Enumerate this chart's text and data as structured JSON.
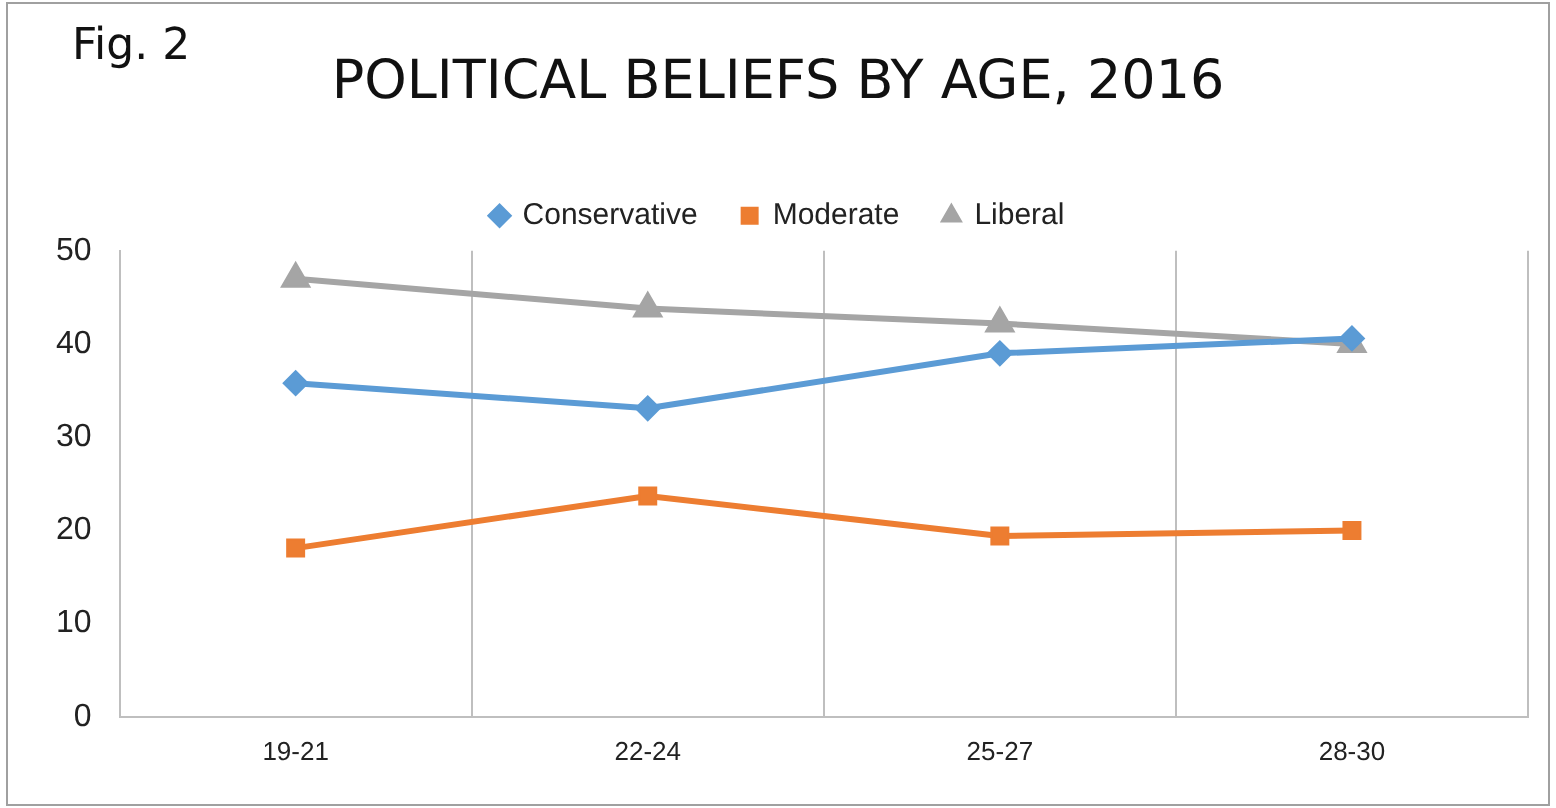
{
  "chart_data": {
    "type": "line",
    "title": "POLITICAL BELIEFS BY AGE, 2016",
    "annotations": [
      "Fig. 2"
    ],
    "categories": [
      "19-21",
      "22-24",
      "25-27",
      "28-30"
    ],
    "series": [
      {
        "name": "Conservative",
        "color": "#5b9bd5",
        "marker": "diamond",
        "values": [
          35.8,
          33.1,
          39,
          40.6
        ]
      },
      {
        "name": "Moderate",
        "color": "#ed7d31",
        "marker": "square",
        "values": [
          18.1,
          23.7,
          19.4,
          20
        ]
      },
      {
        "name": "Liberal",
        "color": "#a5a5a5",
        "marker": "triangle",
        "values": [
          47,
          43.8,
          42.2,
          40
        ]
      }
    ],
    "ylim": [
      0,
      50
    ],
    "yticks": [
      0,
      10,
      20,
      30,
      40,
      50
    ],
    "grid": "x",
    "legend": "top"
  }
}
